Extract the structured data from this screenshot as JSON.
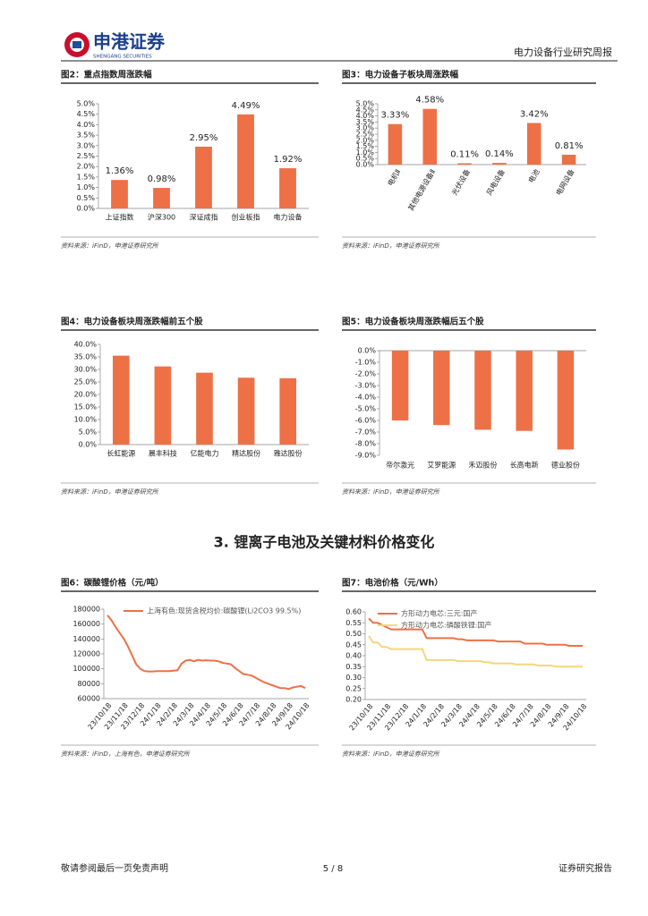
{
  "header": {
    "logo": "申港证券",
    "logo_en": "SHENGANG SECURITIES",
    "report": "电力设备行业研究周报"
  },
  "section": "3. 锂离子电池及关键材料价格变化",
  "footer": {
    "left": "敬请参阅最后一页免责声明",
    "page": "5 / 8",
    "right": "证券研究报告"
  },
  "chart_data": [
    {
      "type": "bar",
      "title": "图2：重点指数周涨跌幅",
      "source": "资料来源：iFinD，申港证券研究所",
      "color": "#ee7046",
      "categories": [
        "上证指数",
        "沪深300",
        "深证成指",
        "创业板指",
        "电力设备"
      ],
      "values": [
        1.36,
        0.98,
        2.95,
        4.49,
        1.92
      ],
      "value_labels": [
        "1.36%",
        "0.98%",
        "2.95%",
        "4.49%",
        "1.92%"
      ],
      "ylim": [
        0,
        5
      ],
      "yticks": [
        {
          "value": 0,
          "label": "0.0%"
        },
        {
          "value": 0.5,
          "label": "0.5%"
        },
        {
          "value": 1,
          "label": "1.0%"
        },
        {
          "value": 1.5,
          "label": "1.5%"
        },
        {
          "value": 2,
          "label": "2.0%"
        },
        {
          "value": 2.5,
          "label": "2.5%"
        },
        {
          "value": 3,
          "label": "3.0%"
        },
        {
          "value": 3.5,
          "label": "3.5%"
        },
        {
          "value": 4,
          "label": "4.0%"
        },
        {
          "value": 4.5,
          "label": "4.5%"
        },
        {
          "value": 5,
          "label": "5.0%"
        }
      ]
    },
    {
      "type": "bar",
      "title": "图3：电力设备子板块周涨跌幅",
      "source": "资料来源：iFinD，申港证券研究所",
      "color": "#ee7046",
      "categories": [
        "电机Ⅱ",
        "其他电源设备Ⅱ",
        "光伏设备",
        "风电设备",
        "电池",
        "电网设备"
      ],
      "values": [
        3.33,
        4.58,
        0.11,
        0.14,
        3.42,
        0.81
      ],
      "value_labels": [
        "3.33%",
        "4.58%",
        "0.11%",
        "0.14%",
        "3.42%",
        "0.81%"
      ],
      "ylim": [
        0,
        5
      ],
      "yticks": [
        {
          "value": 0,
          "label": "0.0%"
        },
        {
          "value": 0.5,
          "label": "0.5%"
        },
        {
          "value": 1,
          "label": "1.0%"
        },
        {
          "value": 1.5,
          "label": "1.5%"
        },
        {
          "value": 2,
          "label": "2.0%"
        },
        {
          "value": 2.5,
          "label": "2.5%"
        },
        {
          "value": 3,
          "label": "3.0%"
        },
        {
          "value": 3.5,
          "label": "3.5%"
        },
        {
          "value": 4,
          "label": "4.0%"
        },
        {
          "value": 4.5,
          "label": "4.5%"
        },
        {
          "value": 5,
          "label": "5.0%"
        }
      ]
    },
    {
      "type": "bar",
      "title": "图4：电力设备板块周涨跌幅前五个股",
      "source": "资料来源：iFinD，申港证券研究所",
      "color": "#ee7046",
      "categories": [
        "长虹能源",
        "晨丰科技",
        "亿能电力",
        "精达股份",
        "雅达股份"
      ],
      "values": [
        35.5,
        31.2,
        28.7,
        26.7,
        26.5
      ],
      "ylim": [
        0,
        40
      ],
      "yticks": [
        {
          "value": 0,
          "label": "0.0%"
        },
        {
          "value": 5,
          "label": "5.0%"
        },
        {
          "value": 10,
          "label": "10.0%"
        },
        {
          "value": 15,
          "label": "15.0%"
        },
        {
          "value": 20,
          "label": "20.0%"
        },
        {
          "value": 25,
          "label": "25.0%"
        },
        {
          "value": 30,
          "label": "30.0%"
        },
        {
          "value": 35,
          "label": "35.0%"
        },
        {
          "value": 40,
          "label": "40.0%"
        }
      ]
    },
    {
      "type": "bar",
      "title": "图5：电力设备板块周涨跌幅后五个股",
      "source": "资料来源：iFinD，申港证券研究所",
      "color": "#ee7046",
      "categories": [
        "帝尔激光",
        "艾罗能源",
        "禾迈股份",
        "长高电新",
        "德业股份"
      ],
      "values": [
        -6.0,
        -6.4,
        -6.8,
        -6.9,
        -8.5
      ],
      "ylim": [
        -9,
        0
      ],
      "yticks": [
        {
          "value": 0,
          "label": "0.0%"
        },
        {
          "value": -1,
          "label": "-1.0%"
        },
        {
          "value": -2,
          "label": "-2.0%"
        },
        {
          "value": -3,
          "label": "-3.0%"
        },
        {
          "value": -4,
          "label": "-4.0%"
        },
        {
          "value": -5,
          "label": "-5.0%"
        },
        {
          "value": -6,
          "label": "-6.0%"
        },
        {
          "value": -7,
          "label": "-7.0%"
        },
        {
          "value": -8,
          "label": "-8.0%"
        },
        {
          "value": -9,
          "label": "-9.0%"
        }
      ]
    },
    {
      "type": "line",
      "title": "图6：碳酸锂价格（元/吨）",
      "source": "资料来源：iFinD，上海有色，申港证券研究所",
      "categories": [
        "23/10/18",
        null,
        null,
        null,
        "23/11/18",
        null,
        null,
        null,
        "23/12/18",
        null,
        null,
        null,
        "24/1/18",
        null,
        null,
        null,
        "24/2/18",
        null,
        null,
        null,
        "24/3/18",
        null,
        null,
        null,
        "24/4/18",
        null,
        null,
        null,
        "24/5/18",
        null,
        null,
        null,
        "24/6/18",
        null,
        null,
        null,
        "24/7/18",
        null,
        null,
        null,
        "24/8/18",
        null,
        null,
        null,
        "24/9/18",
        null,
        null,
        null,
        "24/10/18"
      ],
      "series": [
        {
          "name": "上海有色:现货含税均价:碳酸锂(Li2CO3 99.5%)",
          "color": "#ee7046",
          "values": [
            172000,
            165000,
            156000,
            148000,
            140000,
            130000,
            118000,
            106000,
            100000,
            97000,
            96500,
            96500,
            97000,
            97000,
            97000,
            97000,
            97500,
            98000,
            107000,
            111000,
            112000,
            110000,
            112000,
            111000,
            111500,
            111000,
            111000,
            110000,
            108000,
            107000,
            106000,
            101000,
            97000,
            93000,
            92000,
            91000,
            88000,
            85000,
            82000,
            80000,
            78000,
            76000,
            74000,
            74000,
            73000,
            75000,
            76000,
            77000,
            74000
          ]
        }
      ],
      "ylim": [
        60000,
        180000
      ],
      "yticks": [
        60000,
        80000,
        100000,
        120000,
        140000,
        160000,
        180000
      ]
    },
    {
      "type": "line",
      "title": "图7：电池价格（元/Wh）",
      "source": "资料来源：iFinD，申港证券研究所",
      "categories": [
        "23/10/18",
        null,
        null,
        null,
        "23/11/18",
        null,
        null,
        null,
        "23/12/18",
        null,
        null,
        null,
        "24/1/18",
        null,
        null,
        null,
        "24/2/18",
        null,
        null,
        null,
        "24/3/18",
        null,
        null,
        null,
        "24/4/18",
        null,
        null,
        null,
        "24/5/18",
        null,
        null,
        null,
        "24/6/18",
        null,
        null,
        null,
        "24/7/18",
        null,
        null,
        null,
        "24/8/18",
        null,
        null,
        null,
        "24/9/18",
        null,
        null,
        null,
        "24/10/18"
      ],
      "series": [
        {
          "name": "方形动力电芯:三元:国产",
          "color": "#ee7046",
          "values": [
            0.57,
            0.55,
            0.55,
            0.54,
            0.53,
            0.52,
            0.52,
            0.52,
            0.52,
            0.52,
            0.52,
            0.52,
            0.52,
            0.48,
            0.48,
            0.48,
            0.48,
            0.48,
            0.48,
            0.48,
            0.475,
            0.475,
            0.47,
            0.47,
            0.47,
            0.47,
            0.47,
            0.47,
            0.47,
            0.465,
            0.465,
            0.465,
            0.465,
            0.465,
            0.465,
            0.455,
            0.455,
            0.455,
            0.455,
            0.455,
            0.45,
            0.45,
            0.45,
            0.45,
            0.45,
            0.445,
            0.445,
            0.445,
            0.445
          ]
        },
        {
          "name": "方形动力电芯:磷酸铁锂:国产",
          "color": "#f5d67a",
          "values": [
            0.49,
            0.46,
            0.46,
            0.44,
            0.44,
            0.43,
            0.43,
            0.43,
            0.43,
            0.43,
            0.43,
            0.43,
            0.43,
            0.38,
            0.38,
            0.38,
            0.38,
            0.38,
            0.38,
            0.38,
            0.375,
            0.375,
            0.375,
            0.375,
            0.375,
            0.375,
            0.37,
            0.37,
            0.365,
            0.365,
            0.365,
            0.365,
            0.365,
            0.36,
            0.36,
            0.36,
            0.36,
            0.36,
            0.355,
            0.355,
            0.355,
            0.355,
            0.35,
            0.35,
            0.35,
            0.35,
            0.35,
            0.35,
            0.35
          ]
        }
      ],
      "ylim": [
        0.2,
        0.6
      ],
      "yticks": [
        {
          "value": 0.2,
          "label": "0.20"
        },
        {
          "value": 0.25,
          "label": "0.25"
        },
        {
          "value": 0.3,
          "label": "0.30"
        },
        {
          "value": 0.35,
          "label": "0.35"
        },
        {
          "value": 0.4,
          "label": "0.40"
        },
        {
          "value": 0.45,
          "label": "0.45"
        },
        {
          "value": 0.5,
          "label": "0.50"
        },
        {
          "value": 0.55,
          "label": "0.55"
        },
        {
          "value": 0.6,
          "label": "0.60"
        }
      ]
    }
  ]
}
